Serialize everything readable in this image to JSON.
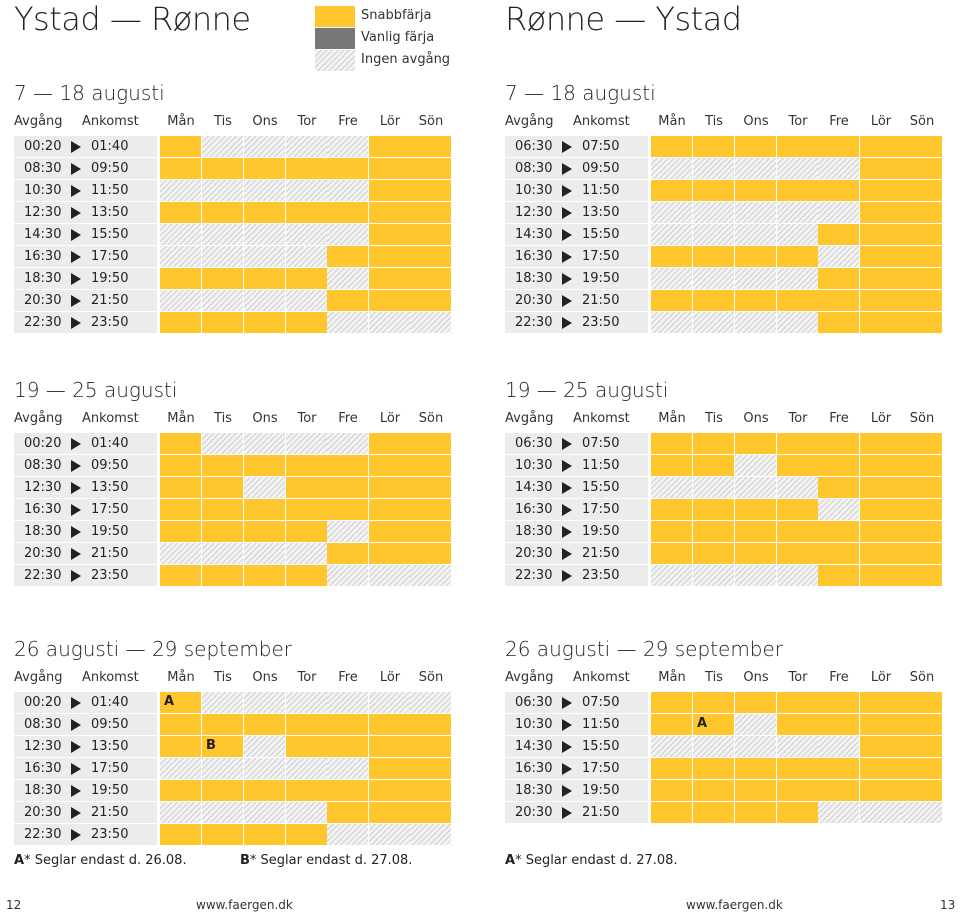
{
  "page": {
    "left_title": "Ystad — Rønne",
    "right_title": "Rønne — Ystad",
    "footer": {
      "left_page": "12",
      "left_url": "www.faergen.dk",
      "right_url": "www.faergen.dk",
      "right_page": "13"
    }
  },
  "colors": {
    "fast_ferry": "#ffc62e",
    "regular_ferry": "#777777",
    "no_departure": "#cfcfcf"
  },
  "legend": [
    {
      "key": "Y",
      "label": "Snabbfärja"
    },
    {
      "key": "G",
      "label": "Vanlig färja"
    },
    {
      "key": "N",
      "label": "Ingen avgång"
    }
  ],
  "header": {
    "departure": "Avgång",
    "arrival": "Ankomst",
    "days": [
      "Mån",
      "Tis",
      "Ons",
      "Tor",
      "Fre",
      "Lör",
      "Sön"
    ]
  },
  "sections": [
    {
      "title": "7 — 18 augusti",
      "rows": [
        {
          "dep": "00:20",
          "arr": "01:40",
          "days": "YNNNNYY"
        },
        {
          "dep": "08:30",
          "arr": "09:50",
          "days": "YYYYYYY"
        },
        {
          "dep": "10:30",
          "arr": "11:50",
          "days": "NNNNNYY"
        },
        {
          "dep": "12:30",
          "arr": "13:50",
          "days": "YYYYYYY"
        },
        {
          "dep": "14:30",
          "arr": "15:50",
          "days": "NNNNNYY"
        },
        {
          "dep": "16:30",
          "arr": "17:50",
          "days": "NNNNYYY"
        },
        {
          "dep": "18:30",
          "arr": "19:50",
          "days": "YYYYNYY"
        },
        {
          "dep": "20:30",
          "arr": "21:50",
          "days": "NNNNYYY"
        },
        {
          "dep": "22:30",
          "arr": "23:50",
          "days": "YYYYNNN"
        }
      ]
    },
    {
      "title": "7 — 18 augusti",
      "rows": [
        {
          "dep": "06:30",
          "arr": "07:50",
          "days": "YYYYYYY"
        },
        {
          "dep": "08:30",
          "arr": "09:50",
          "days": "NNNNNYY"
        },
        {
          "dep": "10:30",
          "arr": "11:50",
          "days": "YYYYYYY"
        },
        {
          "dep": "12:30",
          "arr": "13:50",
          "days": "NNNNNYY"
        },
        {
          "dep": "14:30",
          "arr": "15:50",
          "days": "NNNNYYY"
        },
        {
          "dep": "16:30",
          "arr": "17:50",
          "days": "YYYYNYY"
        },
        {
          "dep": "18:30",
          "arr": "19:50",
          "days": "NNNNYYY"
        },
        {
          "dep": "20:30",
          "arr": "21:50",
          "days": "YYYYYYY"
        },
        {
          "dep": "22:30",
          "arr": "23:50",
          "days": "NNNNYYY"
        }
      ]
    },
    {
      "title": "19 — 25 augusti",
      "rows": [
        {
          "dep": "00:20",
          "arr": "01:40",
          "days": "YNNNNYY"
        },
        {
          "dep": "08:30",
          "arr": "09:50",
          "days": "YYYYYYY"
        },
        {
          "dep": "12:30",
          "arr": "13:50",
          "days": "YYNYYYY"
        },
        {
          "dep": "16:30",
          "arr": "17:50",
          "days": "YYYYYYY"
        },
        {
          "dep": "18:30",
          "arr": "19:50",
          "days": "YYYYNYY"
        },
        {
          "dep": "20:30",
          "arr": "21:50",
          "days": "NNNNYYY"
        },
        {
          "dep": "22:30",
          "arr": "23:50",
          "days": "YYYYNNN"
        }
      ]
    },
    {
      "title": "19 — 25 augusti",
      "rows": [
        {
          "dep": "06:30",
          "arr": "07:50",
          "days": "YYYYYYY"
        },
        {
          "dep": "10:30",
          "arr": "11:50",
          "days": "YYNYYYY"
        },
        {
          "dep": "14:30",
          "arr": "15:50",
          "days": "NNNNYYY"
        },
        {
          "dep": "16:30",
          "arr": "17:50",
          "days": "YYYYNYY"
        },
        {
          "dep": "18:30",
          "arr": "19:50",
          "days": "YYYYYYY"
        },
        {
          "dep": "20:30",
          "arr": "21:50",
          "days": "YYYYYYY"
        },
        {
          "dep": "22:30",
          "arr": "23:50",
          "days": "NNNNYYY"
        }
      ]
    },
    {
      "title": "26 augusti — 29 september",
      "rows": [
        {
          "dep": "00:20",
          "arr": "01:40",
          "days": "YNNNNNN",
          "marks": [
            "A",
            "",
            "",
            "",
            "",
            "",
            ""
          ]
        },
        {
          "dep": "08:30",
          "arr": "09:50",
          "days": "YYYYYYY"
        },
        {
          "dep": "12:30",
          "arr": "13:50",
          "days": "YYNYYYY",
          "marks": [
            "",
            "B",
            "",
            "",
            "",
            "",
            ""
          ]
        },
        {
          "dep": "16:30",
          "arr": "17:50",
          "days": "NNNNNYY"
        },
        {
          "dep": "18:30",
          "arr": "19:50",
          "days": "YYYYYYY"
        },
        {
          "dep": "20:30",
          "arr": "21:50",
          "days": "NNNNYYY"
        },
        {
          "dep": "22:30",
          "arr": "23:50",
          "days": "YYYYNNN"
        }
      ]
    },
    {
      "title": "26 augusti — 29 september",
      "rows": [
        {
          "dep": "06:30",
          "arr": "07:50",
          "days": "YYYYYYY"
        },
        {
          "dep": "10:30",
          "arr": "11:50",
          "days": "YYNYYYY",
          "marks": [
            "",
            "A",
            "",
            "",
            "",
            "",
            ""
          ]
        },
        {
          "dep": "14:30",
          "arr": "15:50",
          "days": "NNNNNYY"
        },
        {
          "dep": "16:30",
          "arr": "17:50",
          "days": "YYYYYYY"
        },
        {
          "dep": "18:30",
          "arr": "19:50",
          "days": "YYYYYYY"
        },
        {
          "dep": "20:30",
          "arr": "21:50",
          "days": "YYYYNNN"
        }
      ]
    }
  ],
  "notes": [
    {
      "letter": "A",
      "star": "*",
      "text": " Seglar endast d. 26.08."
    },
    {
      "letter": "B",
      "star": "*",
      "text": " Seglar endast d. 27.08."
    },
    {
      "letter": "A",
      "star": "*",
      "text": " Seglar endast d. 27.08."
    }
  ]
}
